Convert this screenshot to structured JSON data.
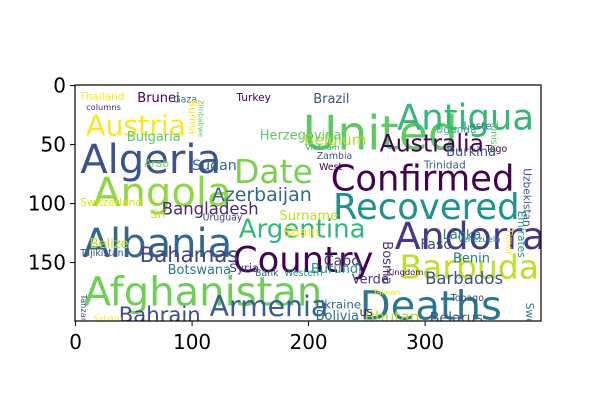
{
  "chart_data": {
    "type": "wordcloud",
    "title": "",
    "xlabel": "",
    "ylabel": "",
    "xlim": [
      -0.5,
      399.5
    ],
    "ylim": [
      199.5,
      -0.5
    ],
    "x_ticks": [
      0,
      100,
      200,
      300
    ],
    "y_ticks": [
      0,
      50,
      100,
      150
    ],
    "grid": false,
    "words": [
      {
        "text": "United",
        "x": 195,
        "y": 22,
        "size": 40,
        "color": "#5ec962"
      },
      {
        "text": "Antigua",
        "x": 276,
        "y": 13,
        "size": 30,
        "color": "#35b779"
      },
      {
        "text": "Austria",
        "x": 9,
        "y": 23,
        "size": 24,
        "color": "#fde725"
      },
      {
        "text": "Algeria",
        "x": 4,
        "y": 47,
        "size": 34,
        "color": "#3b528b"
      },
      {
        "text": "Australia",
        "x": 261,
        "y": 40,
        "size": 20,
        "color": "#440154"
      },
      {
        "text": "Date",
        "x": 136,
        "y": 60,
        "size": 28,
        "color": "#7ad151"
      },
      {
        "text": "Confirmed",
        "x": 219,
        "y": 65,
        "size": 30,
        "color": "#440154"
      },
      {
        "text": "Angola",
        "x": 15,
        "y": 75,
        "size": 34,
        "color": "#90d743"
      },
      {
        "text": "Recovered",
        "x": 221,
        "y": 89,
        "size": 30,
        "color": "#21918c"
      },
      {
        "text": "Azerbaijan",
        "x": 117,
        "y": 85,
        "size": 16,
        "color": "#31688e"
      },
      {
        "text": "Andorra",
        "x": 274,
        "y": 113,
        "size": 32,
        "color": "#443983"
      },
      {
        "text": "Albania",
        "x": 6,
        "y": 118,
        "size": 34,
        "color": "#31688e"
      },
      {
        "text": "Argentina",
        "x": 140,
        "y": 111,
        "size": 22,
        "color": "#35b779"
      },
      {
        "text": "Country",
        "x": 135,
        "y": 134,
        "size": 30,
        "color": "#440154"
      },
      {
        "text": "Barbuda",
        "x": 278,
        "y": 141,
        "size": 28,
        "color": "#bddf26"
      },
      {
        "text": "Afghanistan",
        "x": 7,
        "y": 159,
        "size": 34,
        "color": "#6ece58"
      },
      {
        "text": "Deaths",
        "x": 244,
        "y": 171,
        "size": 34,
        "color": "#2a788e"
      },
      {
        "text": "Armenia",
        "x": 115,
        "y": 176,
        "size": 24,
        "color": "#355f8d"
      },
      {
        "text": "Bahrain",
        "x": 37,
        "y": 186,
        "size": 18,
        "color": "#3e4a89"
      },
      {
        "text": "Bahamas",
        "x": 55,
        "y": 135,
        "size": 18,
        "color": "#414487"
      },
      {
        "text": "Bangladesh",
        "x": 74,
        "y": 98,
        "size": 14,
        "color": "#482878"
      },
      {
        "text": "Belgium",
        "x": 196,
        "y": 40,
        "size": 13,
        "color": "#b5de2b"
      },
      {
        "text": "Herzegovina",
        "x": 158,
        "y": 37,
        "size": 11,
        "color": "#5ec962"
      },
      {
        "text": "Bulgaria",
        "x": 44,
        "y": 38,
        "size": 11,
        "color": "#5ec962"
      },
      {
        "text": "Brunei",
        "x": 53,
        "y": 5,
        "size": 11,
        "color": "#440154"
      },
      {
        "text": "Thailand",
        "x": 3,
        "y": 5,
        "size": 9,
        "color": "#fde725"
      },
      {
        "text": "Brazil",
        "x": 204,
        "y": 6,
        "size": 11,
        "color": "#3b528b"
      },
      {
        "text": "Burkina",
        "x": 318,
        "y": 51,
        "size": 11,
        "color": "#3b528b"
      },
      {
        "text": "Sudan",
        "x": 100,
        "y": 62,
        "size": 12,
        "color": "#31688e"
      },
      {
        "text": "Surname",
        "x": 175,
        "y": 105,
        "size": 11,
        "color": "#bddf26"
      },
      {
        "text": "Spain",
        "x": 178,
        "y": 119,
        "size": 11,
        "color": "#fde725"
      },
      {
        "text": "Cabo",
        "x": 213,
        "y": 143,
        "size": 12,
        "color": "#443983"
      },
      {
        "text": "Switzerland",
        "x": 4,
        "y": 95,
        "size": 9,
        "color": "#dfe318"
      },
      {
        "text": "Sri",
        "x": 64,
        "y": 104,
        "size": 10,
        "color": "#bddf26"
      },
      {
        "text": "Belize",
        "x": 12,
        "y": 129,
        "size": 11,
        "color": "#b5de2b"
      },
      {
        "text": "Tajikistan",
        "x": 4,
        "y": 138,
        "size": 8,
        "color": "#3b528b"
      },
      {
        "text": "Botswana",
        "x": 79,
        "y": 151,
        "size": 11,
        "color": "#2a788e"
      },
      {
        "text": "Syria",
        "x": 132,
        "y": 150,
        "size": 10,
        "color": "#443983"
      },
      {
        "text": "Burundi",
        "x": 202,
        "y": 150,
        "size": 11,
        "color": "#21918c"
      },
      {
        "text": "Faso",
        "x": 296,
        "y": 129,
        "size": 12,
        "color": "#3e4a89"
      },
      {
        "text": "Lanka",
        "x": 315,
        "y": 121,
        "size": 11,
        "color": "#26828e"
      },
      {
        "text": "Benin",
        "x": 324,
        "y": 141,
        "size": 11,
        "color": "#2a788e"
      },
      {
        "text": "Barbados",
        "x": 300,
        "y": 157,
        "size": 14,
        "color": "#3b528b"
      },
      {
        "text": "Verde",
        "x": 237,
        "y": 159,
        "size": 11,
        "color": "#443983"
      },
      {
        "text": "Bosnia",
        "x": 262,
        "y": 132,
        "size": 11,
        "color": "#46337e"
      },
      {
        "text": "Ukraine",
        "x": 206,
        "y": 181,
        "size": 10,
        "color": "#31688e"
      },
      {
        "text": "Bolivia",
        "x": 206,
        "y": 190,
        "size": 11,
        "color": "#2c728e"
      },
      {
        "text": "Bhutan",
        "x": 248,
        "y": 190,
        "size": 13,
        "color": "#b5de2b"
      },
      {
        "text": "Belarus",
        "x": 304,
        "y": 191,
        "size": 12,
        "color": "#3b528b"
      },
      {
        "text": "Tobago",
        "x": 322,
        "y": 176,
        "size": 8,
        "color": "#3e4a89"
      },
      {
        "text": "Kingdom",
        "x": 267,
        "y": 155,
        "size": 7,
        "color": "#440154"
      },
      {
        "text": "Trinidad",
        "x": 299,
        "y": 63,
        "size": 9,
        "color": "#33638d"
      },
      {
        "text": "Tunisia",
        "x": 355,
        "y": 30,
        "size": 8,
        "color": "#5ec962"
      },
      {
        "text": "Togo",
        "x": 352,
        "y": 50,
        "size": 8,
        "color": "#440154"
      },
      {
        "text": "Uganda",
        "x": 309,
        "y": 33,
        "size": 9,
        "color": "#35b779"
      },
      {
        "text": "Leste",
        "x": 333,
        "y": 30,
        "size": 9,
        "color": "#2a788e"
      },
      {
        "text": "Timor",
        "x": 368,
        "y": 121,
        "size": 8,
        "color": "#fde725"
      },
      {
        "text": "Venezuela",
        "x": 328,
        "y": 127,
        "size": 7,
        "color": "#26828e"
      },
      {
        "text": "Turkey",
        "x": 138,
        "y": 6,
        "size": 9,
        "color": "#440154"
      },
      {
        "text": "Gaza",
        "x": 84,
        "y": 8,
        "size": 8,
        "color": "#2a788e"
      },
      {
        "text": "Arab",
        "x": 59,
        "y": 62,
        "size": 9,
        "color": "#7ad151"
      },
      {
        "text": "Bank",
        "x": 154,
        "y": 155,
        "size": 8,
        "color": "#33638d"
      },
      {
        "text": "Western",
        "x": 179,
        "y": 155,
        "size": 8,
        "color": "#21918c"
      },
      {
        "text": "Uruguay",
        "x": 109,
        "y": 108,
        "size": 8,
        "color": "#414487"
      },
      {
        "text": "Zambia",
        "x": 207,
        "y": 56,
        "size": 8,
        "color": "#3b528b"
      },
      {
        "text": "West",
        "x": 209,
        "y": 65,
        "size": 8,
        "color": "#440154"
      },
      {
        "text": "Vietnam",
        "x": 197,
        "y": 49,
        "size": 7,
        "color": "#35b779"
      },
      {
        "text": "columns",
        "x": 9,
        "y": 15,
        "size": 7,
        "color": "#472c7a"
      },
      {
        "text": "Sahara",
        "x": 15,
        "y": 194,
        "size": 7,
        "color": "#fde725"
      },
      {
        "text": "Tanzania",
        "x": 4,
        "y": 177,
        "size": 7,
        "color": "#3b528b"
      },
      {
        "text": "Taiwan",
        "x": 255,
        "y": 172,
        "size": 7,
        "color": "#fde725"
      },
      {
        "text": "US",
        "x": 244,
        "y": 189,
        "size": 8,
        "color": "#440154"
      },
      {
        "text": "Sweden",
        "x": 385,
        "y": 184,
        "size": 9,
        "color": "#2a788e"
      },
      {
        "text": "Emirates",
        "x": 378,
        "y": 106,
        "size": 9,
        "color": "#21918c"
      },
      {
        "text": "Uzbekistan",
        "x": 383,
        "y": 70,
        "size": 9,
        "color": "#3b528b"
      },
      {
        "text": "Burma",
        "x": 96,
        "y": 12,
        "size": 9,
        "color": "#fde725"
      },
      {
        "text": "Zimbabwe",
        "x": 105,
        "y": 12,
        "size": 6,
        "color": "#5ec962"
      }
    ]
  }
}
